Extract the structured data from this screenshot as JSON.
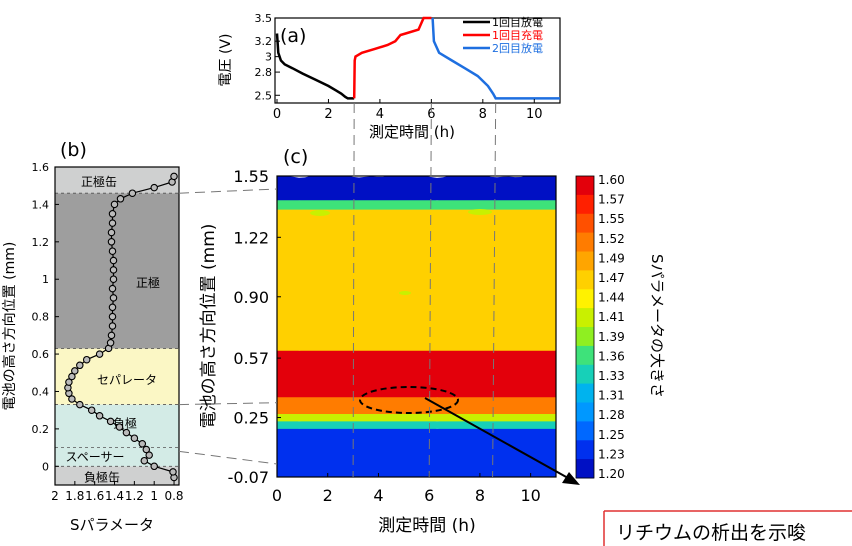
{
  "chart_data": [
    {
      "id": "a",
      "panel_label": "(a)",
      "type": "line",
      "xlabel": "測定時間 (h)",
      "ylabel": "電圧 (V)",
      "xlim": [
        0,
        11
      ],
      "ylim": [
        2.4,
        3.5
      ],
      "x_ticks": [
        "0",
        "2",
        "4",
        "6",
        "8",
        "10"
      ],
      "y_ticks": [
        "2.5",
        "2.8",
        "3",
        "3.2",
        "3.5"
      ],
      "series": [
        {
          "name": "1回目放電",
          "color": "#000000",
          "x": [
            0,
            0.05,
            0.15,
            0.3,
            0.6,
            1.0,
            1.5,
            2.0,
            2.3,
            2.5,
            2.65,
            2.75,
            3.0
          ],
          "y": [
            3.3,
            3.05,
            2.95,
            2.9,
            2.85,
            2.78,
            2.7,
            2.62,
            2.56,
            2.52,
            2.48,
            2.46,
            2.46
          ]
        },
        {
          "name": "1回目充電",
          "color": "#ff0000",
          "x": [
            3.0,
            3.02,
            3.05,
            3.3,
            3.8,
            4.3,
            4.6,
            4.8,
            5.0,
            5.5,
            5.7,
            6.0
          ],
          "y": [
            2.46,
            2.95,
            3.0,
            3.05,
            3.1,
            3.15,
            3.2,
            3.28,
            3.3,
            3.35,
            3.5,
            3.5
          ]
        },
        {
          "name": "2回目放電",
          "color": "#1e6fe0",
          "x": [
            6.05,
            6.1,
            6.3,
            6.8,
            7.3,
            7.8,
            8.2,
            8.4,
            8.5,
            9.0,
            10.0,
            11.0
          ],
          "y": [
            3.5,
            3.2,
            3.05,
            2.95,
            2.85,
            2.75,
            2.62,
            2.52,
            2.46,
            2.46,
            2.46,
            2.46
          ]
        }
      ]
    },
    {
      "id": "b",
      "panel_label": "(b)",
      "type": "scatter",
      "xlabel": "Sパラメータ",
      "ylabel": "電池の高さ方向位置 (mm)",
      "x_reversed": true,
      "xlim": [
        2.0,
        0.75
      ],
      "ylim": [
        -0.1,
        1.6
      ],
      "x_ticks": [
        "2",
        "1.8",
        "1.6",
        "1.4",
        "1.2",
        "1",
        "0.8"
      ],
      "y_ticks": [
        "0",
        "0.2",
        "0.4",
        "0.6",
        "0.8",
        "1",
        "1.2",
        "1.4",
        "1.6"
      ],
      "regions": [
        {
          "label": "負極缶",
          "from": -0.1,
          "to": 0.0,
          "color": "#cfd0d0"
        },
        {
          "label": "スペーサー",
          "from": 0.0,
          "to": 0.1,
          "color": "#d3ebe6"
        },
        {
          "label": "負極",
          "from": 0.1,
          "to": 0.33,
          "color": "#d3ebe6"
        },
        {
          "label": "セパレータ",
          "from": 0.33,
          "to": 0.63,
          "color": "#fbf7c5"
        },
        {
          "label": "正極",
          "from": 0.63,
          "to": 1.46,
          "color": "#9e9e9e"
        },
        {
          "label": "正極缶",
          "from": 1.46,
          "to": 1.6,
          "color": "#cfd0d0"
        }
      ],
      "y": [
        -0.06,
        -0.03,
        0.0,
        0.03,
        0.06,
        0.09,
        0.12,
        0.15,
        0.18,
        0.21,
        0.24,
        0.27,
        0.3,
        0.33,
        0.36,
        0.39,
        0.42,
        0.45,
        0.48,
        0.51,
        0.54,
        0.57,
        0.6,
        0.63,
        0.66,
        0.7,
        0.75,
        0.8,
        0.85,
        0.9,
        0.95,
        1.0,
        1.05,
        1.1,
        1.15,
        1.2,
        1.25,
        1.3,
        1.35,
        1.4,
        1.43,
        1.46,
        1.49,
        1.52,
        1.55
      ],
      "x": [
        0.8,
        0.81,
        1.0,
        1.1,
        1.05,
        1.08,
        1.12,
        1.2,
        1.28,
        1.35,
        1.44,
        1.55,
        1.63,
        1.75,
        1.83,
        1.86,
        1.87,
        1.86,
        1.83,
        1.8,
        1.75,
        1.68,
        1.55,
        1.46,
        1.44,
        1.43,
        1.42,
        1.42,
        1.42,
        1.41,
        1.42,
        1.41,
        1.41,
        1.41,
        1.42,
        1.43,
        1.43,
        1.42,
        1.42,
        1.4,
        1.34,
        1.22,
        1.0,
        0.82,
        0.8
      ]
    },
    {
      "id": "c",
      "panel_label": "(c)",
      "type": "heatmap",
      "xlabel": "測定時間 (h)",
      "ylabel": "電池の高さ方向位置 (mm)",
      "colorbar_label": "Sパラメータの大きさ",
      "xlim": [
        0,
        11
      ],
      "ylim": [
        -0.07,
        1.55
      ],
      "x_ticks": [
        "0",
        "2",
        "4",
        "6",
        "8",
        "10"
      ],
      "y_ticks": [
        "-0.07",
        "0.25",
        "0.57",
        "0.90",
        "1.22",
        "1.55"
      ],
      "colorbar_ticks": [
        "1.60",
        "1.57",
        "1.55",
        "1.52",
        "1.49",
        "1.47",
        "1.44",
        "1.41",
        "1.39",
        "1.36",
        "1.33",
        "1.31",
        "1.28",
        "1.25",
        "1.23",
        "1.20"
      ],
      "colorbar_colors": [
        "#e3000b",
        "#ff2000",
        "#ff5000",
        "#ff7c00",
        "#ffa500",
        "#ffd000",
        "#fff200",
        "#c9f000",
        "#8fef21",
        "#3ee27a",
        "#17d0b8",
        "#00b3ee",
        "#0098ff",
        "#0068ff",
        "#0030ee",
        "#0010c4"
      ],
      "bands": [
        {
          "from": -0.07,
          "to": 0.2,
          "value": 1.22
        },
        {
          "from": 0.2,
          "to": 0.24,
          "value": 1.33
        },
        {
          "from": 0.24,
          "to": 0.28,
          "value": 1.4
        },
        {
          "from": 0.28,
          "to": 0.37,
          "value": 1.52
        },
        {
          "from": 0.37,
          "to": 0.62,
          "value": 1.59
        },
        {
          "from": 0.62,
          "to": 1.38,
          "value": 1.46
        },
        {
          "from": 1.38,
          "to": 1.43,
          "value": 1.36
        },
        {
          "from": 1.43,
          "to": 1.55,
          "value": 1.21
        }
      ]
    }
  ],
  "annotation": {
    "text": "リチウムの析出を示唆",
    "target_time_h": 4.5,
    "target_position_mm": 0.32
  }
}
